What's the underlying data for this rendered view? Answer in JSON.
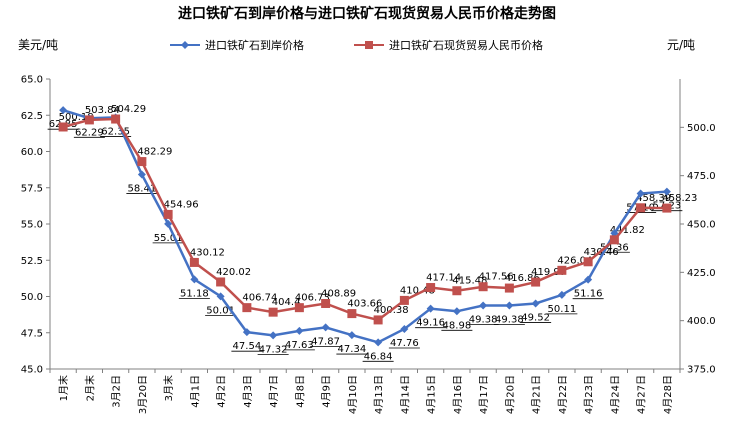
{
  "chart_data": {
    "type": "line",
    "title": "进口铁矿石到岸价格与进口铁矿石现货贸易人民币价格走势图",
    "ylabel_left": "美元/吨",
    "ylabel_right": "元/吨",
    "categories": [
      "1月末",
      "2月末",
      "3月2日",
      "3月20日",
      "3月末",
      "4月1日",
      "4月2日",
      "4月3日",
      "4月7日",
      "4月8日",
      "4月9日",
      "4月10日",
      "4月13日",
      "4月14日",
      "4月15日",
      "4月16日",
      "4月17日",
      "4月20日",
      "4月21日",
      "4月22日",
      "4月23日",
      "4月24日",
      "4月27日",
      "4月28日"
    ],
    "series": [
      {
        "name": "进口铁矿石到岸价格",
        "axis": "left",
        "color": "#4472C4",
        "values": [
          62.85,
          62.29,
          62.35,
          58.41,
          55.01,
          51.18,
          50.01,
          47.54,
          47.32,
          47.63,
          47.87,
          47.34,
          46.84,
          47.76,
          49.16,
          48.98,
          49.38,
          49.38,
          49.52,
          50.11,
          51.16,
          54.36,
          57.1,
          57.23
        ],
        "labels": [
          "62.85",
          "62.29",
          "62.35",
          "58.41",
          "55.01",
          "51.18",
          "50.01",
          "47.54",
          "47.32",
          "47.63",
          "47.87",
          "47.34",
          "46.84",
          "47.76",
          "49.16",
          "48.98",
          "49.38",
          "49.38",
          "49.52",
          "50.11",
          "51.16",
          "54.36",
          "57.10",
          "57.23"
        ]
      },
      {
        "name": "进口铁矿石现货贸易人民币价格",
        "axis": "right",
        "color": "#C0504D",
        "values": [
          500.18,
          503.84,
          504.29,
          482.29,
          454.96,
          430.12,
          420.02,
          406.74,
          404.4,
          406.73,
          408.89,
          403.66,
          400.38,
          410.48,
          417.14,
          415.48,
          417.56,
          416.86,
          419.97,
          426.04,
          430.46,
          441.82,
          458.39,
          458.23
        ],
        "labels": [
          "500.18",
          "503.84",
          "504.29",
          "482.29",
          "454.96",
          "430.12",
          "420.02",
          "406.74",
          "404.4",
          "406.73",
          "408.89",
          "403.66",
          "400.38",
          "410.48",
          "417.14",
          "415.48",
          "417.56",
          "416.86",
          "419.97",
          "426.04",
          "430.46",
          "441.82",
          "458.39",
          "458.23"
        ]
      }
    ],
    "ylim_left": [
      45.0,
      65.0
    ],
    "yticks_left": [
      "45.0",
      "47.5",
      "50.0",
      "52.5",
      "55.0",
      "57.5",
      "60.0",
      "62.5",
      "65.0"
    ],
    "ylim_right": [
      375.0,
      525.0
    ],
    "yticks_right": [
      "375.0",
      "400.0",
      "425.0",
      "450.0",
      "475.0",
      "500.0"
    ],
    "grid": false,
    "legend_position": "top"
  }
}
